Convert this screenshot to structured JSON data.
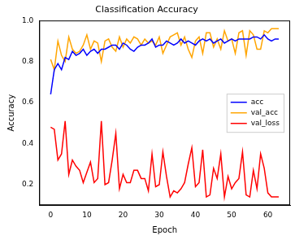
{
  "chart_data": {
    "type": "line",
    "title": "Classification Accuracy",
    "x_label": "Epoch",
    "y_label": "Accuracy",
    "x": [
      0,
      1,
      2,
      3,
      4,
      5,
      6,
      7,
      8,
      9,
      10,
      11,
      12,
      13,
      14,
      15,
      16,
      17,
      18,
      19,
      20,
      21,
      22,
      23,
      24,
      25,
      26,
      27,
      28,
      29,
      30,
      31,
      32,
      33,
      34,
      35,
      36,
      37,
      38,
      39,
      40,
      41,
      42,
      43,
      44,
      45,
      46,
      47,
      48,
      49,
      50,
      51,
      52,
      53,
      54,
      55,
      56,
      57,
      58,
      59,
      60,
      61,
      62,
      63
    ],
    "series": [
      {
        "name": "acc",
        "color": "#0000ff",
        "values": [
          0.64,
          0.76,
          0.79,
          0.76,
          0.82,
          0.81,
          0.85,
          0.83,
          0.84,
          0.86,
          0.83,
          0.85,
          0.86,
          0.84,
          0.86,
          0.86,
          0.87,
          0.88,
          0.88,
          0.86,
          0.89,
          0.88,
          0.86,
          0.85,
          0.87,
          0.88,
          0.88,
          0.89,
          0.91,
          0.87,
          0.88,
          0.88,
          0.9,
          0.89,
          0.88,
          0.89,
          0.91,
          0.89,
          0.9,
          0.89,
          0.88,
          0.9,
          0.91,
          0.9,
          0.91,
          0.89,
          0.9,
          0.91,
          0.89,
          0.9,
          0.91,
          0.9,
          0.91,
          0.91,
          0.91,
          0.91,
          0.92,
          0.92,
          0.91,
          0.93,
          0.91,
          0.9,
          0.91,
          0.91
        ]
      },
      {
        "name": "val_acc",
        "color": "#ffa500",
        "values": [
          0.81,
          0.76,
          0.9,
          0.83,
          0.8,
          0.92,
          0.86,
          0.84,
          0.85,
          0.88,
          0.93,
          0.86,
          0.9,
          0.89,
          0.8,
          0.9,
          0.91,
          0.87,
          0.85,
          0.92,
          0.87,
          0.91,
          0.89,
          0.92,
          0.91,
          0.88,
          0.91,
          0.89,
          0.9,
          0.88,
          0.92,
          0.84,
          0.88,
          0.92,
          0.93,
          0.94,
          0.88,
          0.92,
          0.86,
          0.82,
          0.9,
          0.92,
          0.84,
          0.94,
          0.94,
          0.87,
          0.91,
          0.86,
          0.95,
          0.9,
          0.91,
          0.84,
          0.94,
          0.95,
          0.83,
          0.95,
          0.93,
          0.86,
          0.86,
          0.95,
          0.94,
          0.96,
          0.96,
          0.96
        ]
      },
      {
        "name": "val_loss",
        "color": "#ff0000",
        "values": [
          0.48,
          0.47,
          0.32,
          0.35,
          0.51,
          0.25,
          0.32,
          0.29,
          0.27,
          0.21,
          0.26,
          0.31,
          0.21,
          0.23,
          0.51,
          0.2,
          0.21,
          0.32,
          0.45,
          0.18,
          0.25,
          0.21,
          0.21,
          0.27,
          0.27,
          0.23,
          0.23,
          0.17,
          0.35,
          0.19,
          0.2,
          0.36,
          0.24,
          0.14,
          0.17,
          0.16,
          0.18,
          0.21,
          0.3,
          0.38,
          0.19,
          0.21,
          0.37,
          0.14,
          0.15,
          0.28,
          0.23,
          0.35,
          0.14,
          0.24,
          0.18,
          0.21,
          0.23,
          0.36,
          0.15,
          0.14,
          0.27,
          0.18,
          0.35,
          0.28,
          0.16,
          0.14,
          0.14,
          0.14
        ]
      }
    ],
    "xlim": [
      -3.15,
      66.15
    ],
    "xticks": [
      0,
      10,
      20,
      30,
      40,
      50,
      60
    ],
    "ylim": [
      0.1,
      1.0
    ],
    "yticks": [
      0.2,
      0.4,
      0.6,
      0.8,
      {
        "value": 1,
        "label": "1.0"
      }
    ],
    "grid": false,
    "legend": "right",
    "line_style": "solid",
    "marker": "none"
  }
}
